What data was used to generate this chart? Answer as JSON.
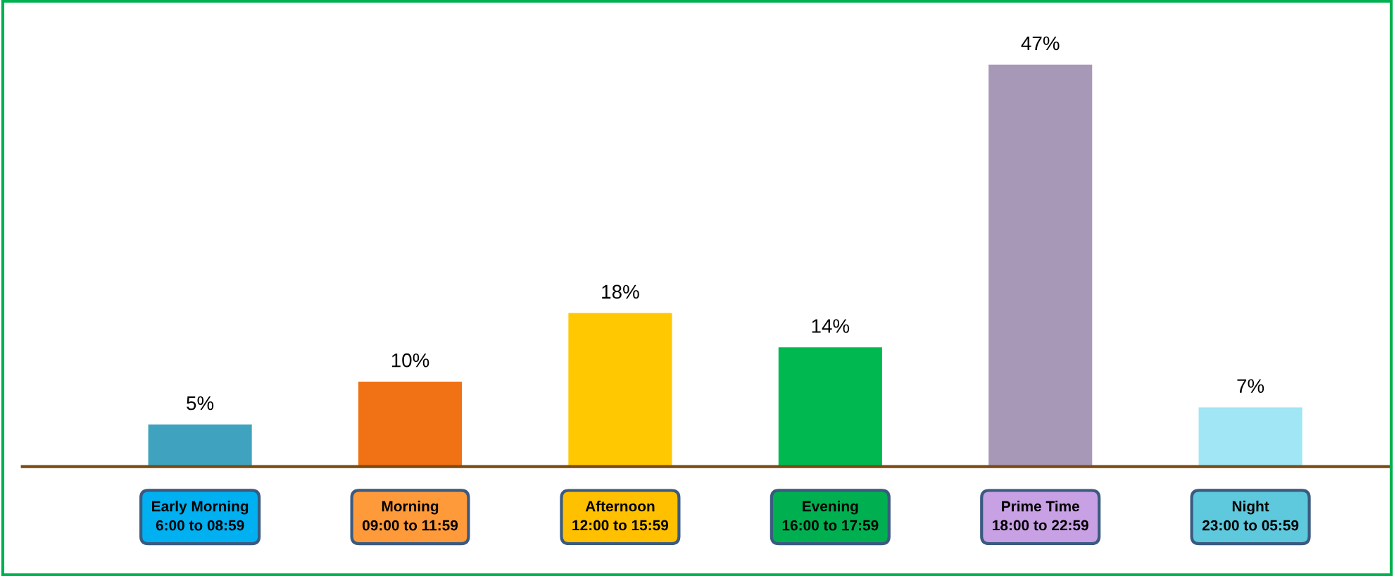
{
  "chart_data": {
    "type": "bar",
    "categories": [
      "Early Morning\n6:00 to 08:59",
      "Morning\n09:00 to 11:59",
      "Afternoon\n12:00 to 15:59",
      "Evening\n16:00 to 17:59",
      "Prime Time\n18:00 to 22:59",
      "Night\n23:00 to 05:59"
    ],
    "values": [
      5,
      10,
      18,
      14,
      47,
      7
    ],
    "colors": [
      "#3fa3bf",
      "#f07214",
      "#ffc800",
      "#00b850",
      "#a898b8",
      "#a0e6f4"
    ],
    "value_labels": [
      "5%",
      "10%",
      "18%",
      "14%",
      "47%",
      "7%"
    ],
    "legend": false
  }
}
